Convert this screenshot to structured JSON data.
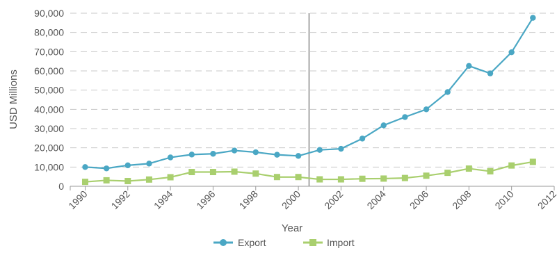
{
  "chart_data": {
    "type": "line",
    "xlabel": "Year",
    "ylabel": "USD Millions",
    "xlim": [
      1989.3,
      2012
    ],
    "ylim": [
      0,
      90000
    ],
    "x_ticks": [
      "1990",
      "1992",
      "1994",
      "1996",
      "1998",
      "2000",
      "2002",
      "2004",
      "2006",
      "2008",
      "2010",
      "2012"
    ],
    "y_ticks": [
      "0",
      "10,000",
      "20,000",
      "30,000",
      "40,000",
      "50,000",
      "60,000",
      "70,000",
      "80,000",
      "90,000"
    ],
    "grid": "horizontal dashed",
    "reference_line_x": 2000.5,
    "legend_position": "bottom",
    "x": [
      1990,
      1991,
      1992,
      1993,
      1994,
      1995,
      1996,
      1997,
      1998,
      1999,
      2000,
      2001,
      2002,
      2003,
      2004,
      2005,
      2006,
      2007,
      2008,
      2009,
      2010,
      2011
    ],
    "series": [
      {
        "name": "Export",
        "color": "#4aa7c4",
        "values": [
          10000,
          9300,
          10900,
          11800,
          15000,
          16500,
          16900,
          18600,
          17700,
          16400,
          15800,
          18900,
          19500,
          24800,
          31700,
          36000,
          40000,
          49000,
          62600,
          58700,
          69700,
          87600
        ]
      },
      {
        "name": "Import",
        "color": "#a9cf6e",
        "values": [
          2300,
          3100,
          2700,
          3500,
          4700,
          7400,
          7400,
          7600,
          6600,
          4800,
          4800,
          3600,
          3600,
          3900,
          4000,
          4300,
          5500,
          7000,
          9200,
          7800,
          10800,
          12700
        ]
      }
    ]
  }
}
